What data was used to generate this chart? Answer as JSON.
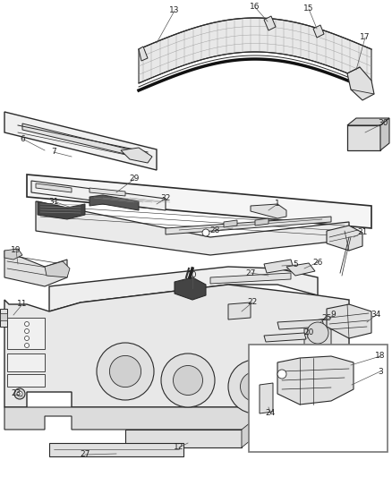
{
  "bg_color": "#ffffff",
  "line_color": "#2a2a2a",
  "figsize": [
    4.38,
    5.33
  ],
  "dpi": 100,
  "label_fontsize": 6.5,
  "leader_color": "#555555",
  "parts_fill": "#f0f0f0",
  "parts_fill2": "#e0e0e0",
  "parts_fill3": "#d0d0d0",
  "inset_border": "#888888"
}
